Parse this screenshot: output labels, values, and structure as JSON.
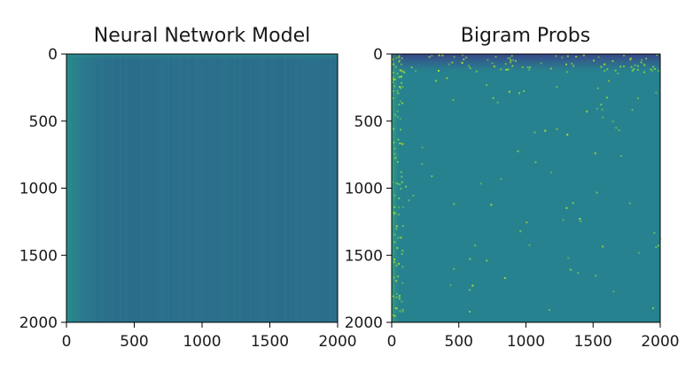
{
  "chart_data": [
    {
      "type": "heatmap",
      "title": "Neural Network Model",
      "xlabel": "",
      "ylabel": "",
      "xlim": [
        0,
        2000
      ],
      "ylim": [
        2000,
        0
      ],
      "xticks": [
        0,
        500,
        1000,
        1500,
        2000
      ],
      "yticks": [
        0,
        500,
        1000,
        1500,
        2000
      ],
      "grid": false,
      "colormap": "viridis",
      "colors": {
        "base": "#2b6f8c",
        "left_band": "#2a8c8c",
        "top_row": "#2a9090"
      }
    },
    {
      "type": "heatmap",
      "title": "Bigram Probs",
      "xlabel": "",
      "ylabel": "",
      "xlim": [
        0,
        2000
      ],
      "ylim": [
        2000,
        0
      ],
      "xticks": [
        0,
        500,
        1000,
        1500,
        2000
      ],
      "yticks": [
        0,
        500,
        1000,
        1500,
        2000
      ],
      "grid": false,
      "colormap": "viridis",
      "colors": {
        "base": "#26828e",
        "top_band": "#34508f",
        "speckle": "#7ad151"
      }
    }
  ]
}
